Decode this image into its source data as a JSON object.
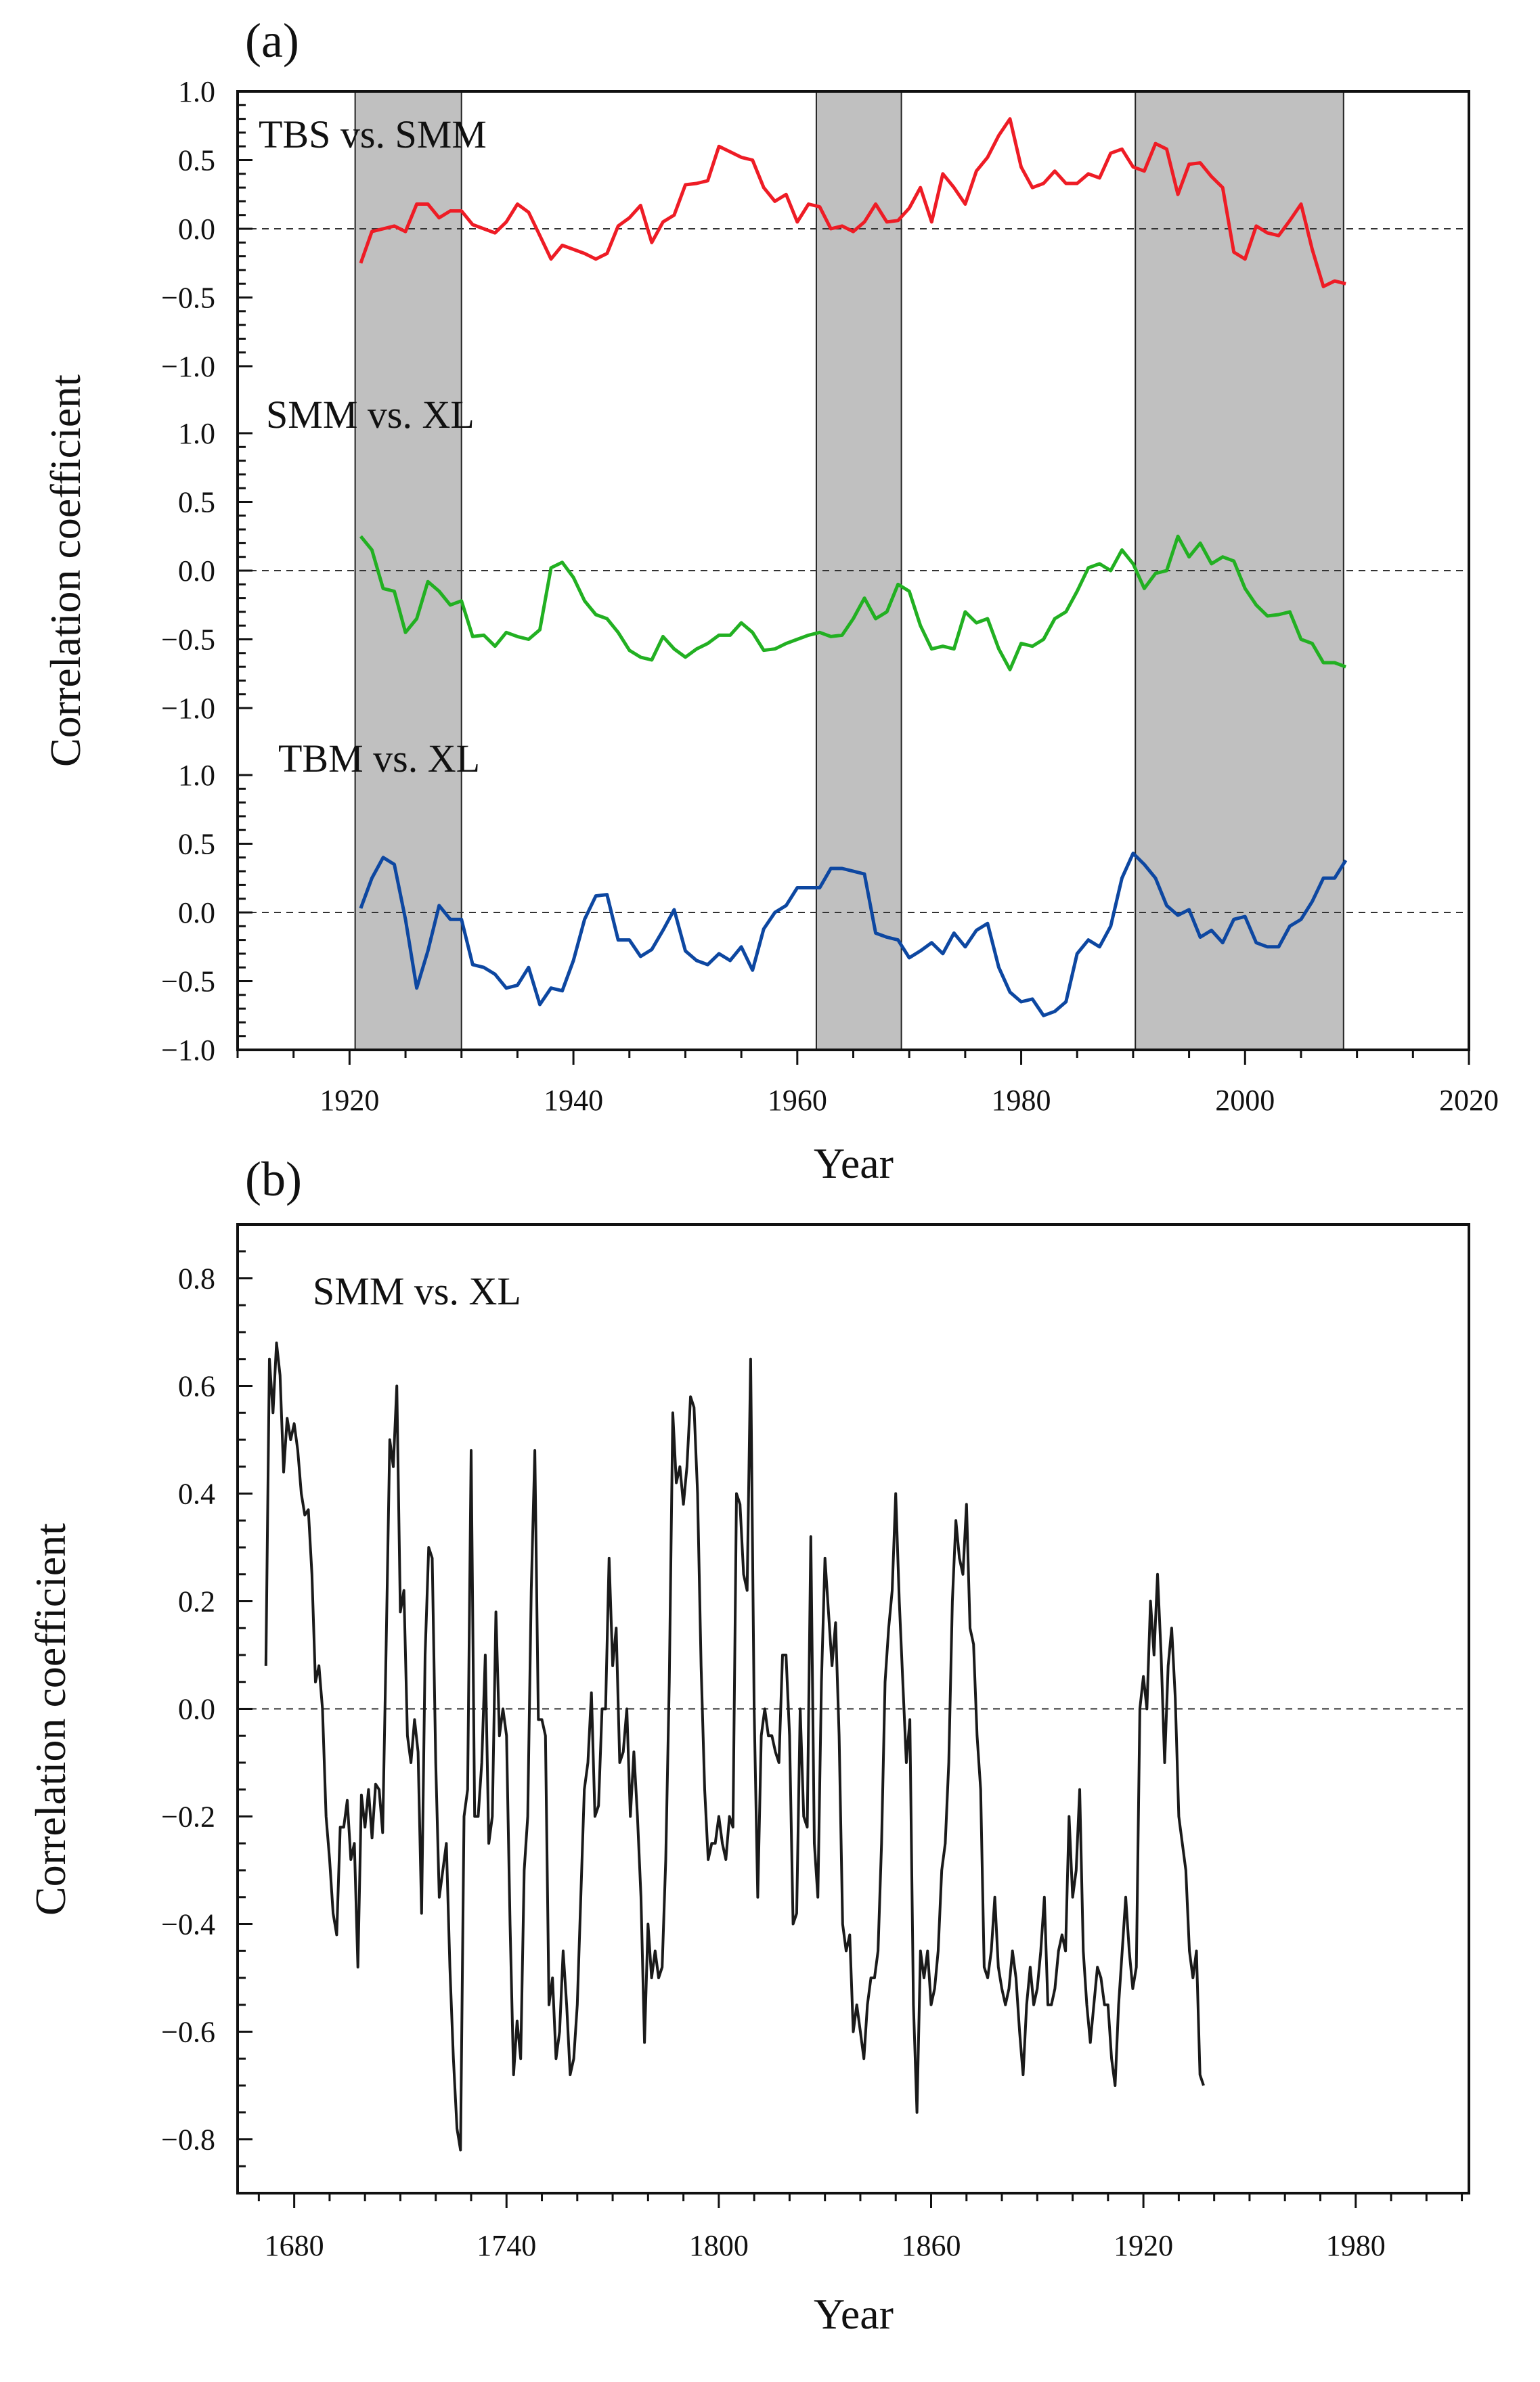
{
  "chart_data": [
    {
      "type": "line",
      "panel_label": "(a)",
      "title": "",
      "xlabel": "Year",
      "ylabel": "Correlation coefficient",
      "xlim": [
        1910,
        2020
      ],
      "xticks": [
        "1920",
        "1940",
        "1960",
        "1980",
        "2000",
        "2020"
      ],
      "shaded_periods": [
        [
          1920.5,
          1930
        ],
        [
          1961.7,
          1969.3
        ],
        [
          1990.2,
          2008.8
        ]
      ],
      "subplots": [
        {
          "name": "TBS vs. SMM",
          "color": "#ee1c25",
          "ylim": [
            -1.0,
            1.0
          ],
          "yticks": [
            "1.0",
            "0.5",
            "0.0",
            "−0.5",
            "−1.0"
          ],
          "x": [
            1921,
            1922,
            1923,
            1924,
            1925,
            1926,
            1927,
            1928,
            1929,
            1930,
            1931,
            1932,
            1933,
            1934,
            1935,
            1936,
            1937,
            1938,
            1939,
            1940,
            1941,
            1942,
            1943,
            1944,
            1945,
            1946,
            1947,
            1948,
            1949,
            1950,
            1951,
            1952,
            1953,
            1954,
            1955,
            1956,
            1957,
            1958,
            1959,
            1960,
            1961,
            1962,
            1963,
            1964,
            1965,
            1966,
            1967,
            1968,
            1969,
            1970,
            1971,
            1972,
            1973,
            1974,
            1975,
            1976,
            1977,
            1978,
            1979,
            1980,
            1981,
            1982,
            1983,
            1984,
            1985,
            1986,
            1987,
            1988,
            1989,
            1990,
            1991,
            1992,
            1993,
            1994,
            1995,
            1996,
            1997,
            1998,
            1999,
            2000,
            2001,
            2002,
            2003,
            2004,
            2005,
            2006,
            2007,
            2008,
            2009
          ],
          "values": [
            -0.25,
            -0.02,
            0.0,
            0.02,
            -0.02,
            0.18,
            0.18,
            0.08,
            0.13,
            0.13,
            0.03,
            0.0,
            -0.03,
            0.05,
            0.18,
            0.12,
            -0.05,
            -0.22,
            -0.12,
            -0.15,
            -0.18,
            -0.22,
            -0.18,
            0.02,
            0.08,
            0.17,
            -0.1,
            0.05,
            0.1,
            0.32,
            0.33,
            0.35,
            0.6,
            0.56,
            0.52,
            0.5,
            0.3,
            0.2,
            0.25,
            0.05,
            0.18,
            0.16,
            0.0,
            0.02,
            -0.02,
            0.05,
            0.18,
            0.05,
            0.06,
            0.15,
            0.3,
            0.05,
            0.4,
            0.3,
            0.18,
            0.42,
            0.52,
            0.68,
            0.8,
            0.45,
            0.3,
            0.33,
            0.42,
            0.33,
            0.33,
            0.4,
            0.37,
            0.55,
            0.58,
            0.45,
            0.42,
            0.62,
            0.58,
            0.25,
            0.47,
            0.48,
            0.38,
            0.3,
            -0.17,
            -0.22,
            0.02,
            -0.03,
            -0.05,
            0.06,
            0.18,
            -0.15,
            -0.42,
            -0.38,
            -0.4
          ]
        },
        {
          "name": "SMM vs. XL",
          "color": "#22b022",
          "ylim": [
            -1.0,
            1.0
          ],
          "yticks": [
            "1.0",
            "0.5",
            "0.0",
            "−0.5",
            "−1.0"
          ],
          "x": [
            1921,
            1922,
            1923,
            1924,
            1925,
            1926,
            1927,
            1928,
            1929,
            1930,
            1931,
            1932,
            1933,
            1934,
            1935,
            1936,
            1937,
            1938,
            1939,
            1940,
            1941,
            1942,
            1943,
            1944,
            1945,
            1946,
            1947,
            1948,
            1949,
            1950,
            1951,
            1952,
            1953,
            1954,
            1955,
            1956,
            1957,
            1958,
            1959,
            1960,
            1961,
            1962,
            1963,
            1964,
            1965,
            1966,
            1967,
            1968,
            1969,
            1970,
            1971,
            1972,
            1973,
            1974,
            1975,
            1976,
            1977,
            1978,
            1979,
            1980,
            1981,
            1982,
            1983,
            1984,
            1985,
            1986,
            1987,
            1988,
            1989,
            1990,
            1991,
            1992,
            1993,
            1994,
            1995,
            1996,
            1997,
            1998,
            1999,
            2000,
            2001,
            2002,
            2003,
            2004,
            2005,
            2006,
            2007,
            2008,
            2009
          ],
          "values": [
            0.25,
            0.15,
            -0.13,
            -0.15,
            -0.45,
            -0.35,
            -0.08,
            -0.15,
            -0.25,
            -0.22,
            -0.48,
            -0.47,
            -0.55,
            -0.45,
            -0.48,
            -0.5,
            -0.43,
            0.02,
            0.06,
            -0.05,
            -0.22,
            -0.32,
            -0.35,
            -0.45,
            -0.58,
            -0.63,
            -0.65,
            -0.48,
            -0.57,
            -0.63,
            -0.57,
            -0.53,
            -0.47,
            -0.47,
            -0.38,
            -0.45,
            -0.58,
            -0.57,
            -0.53,
            -0.5,
            -0.47,
            -0.45,
            -0.48,
            -0.47,
            -0.35,
            -0.2,
            -0.35,
            -0.3,
            -0.1,
            -0.15,
            -0.4,
            -0.57,
            -0.55,
            -0.57,
            -0.3,
            -0.38,
            -0.35,
            -0.57,
            -0.72,
            -0.53,
            -0.55,
            -0.5,
            -0.35,
            -0.3,
            -0.15,
            0.02,
            0.05,
            0.0,
            0.15,
            0.05,
            -0.13,
            -0.02,
            0.0,
            0.25,
            0.1,
            0.2,
            0.05,
            0.1,
            0.07,
            -0.13,
            -0.25,
            -0.33,
            -0.32,
            -0.3,
            -0.5,
            -0.53,
            -0.67,
            -0.67,
            -0.7
          ]
        },
        {
          "name": "TBM vs. XL",
          "color": "#0d47a1",
          "ylim": [
            -1.0,
            1.0
          ],
          "yticks": [
            "1.0",
            "0.5",
            "0.0",
            "−0.5",
            "−1.0"
          ],
          "x": [
            1921,
            1922,
            1923,
            1924,
            1925,
            1926,
            1927,
            1928,
            1929,
            1930,
            1931,
            1932,
            1933,
            1934,
            1935,
            1936,
            1937,
            1938,
            1939,
            1940,
            1941,
            1942,
            1943,
            1944,
            1945,
            1946,
            1947,
            1948,
            1949,
            1950,
            1951,
            1952,
            1953,
            1954,
            1955,
            1956,
            1957,
            1958,
            1959,
            1960,
            1961,
            1962,
            1963,
            1964,
            1965,
            1966,
            1967,
            1968,
            1969,
            1970,
            1971,
            1972,
            1973,
            1974,
            1975,
            1976,
            1977,
            1978,
            1979,
            1980,
            1981,
            1982,
            1983,
            1984,
            1985,
            1986,
            1987,
            1988,
            1989,
            1990,
            1991,
            1992,
            1993,
            1994,
            1995,
            1996,
            1997,
            1998,
            1999,
            2000,
            2001,
            2002,
            2003,
            2004,
            2005,
            2006,
            2007,
            2008,
            2009
          ],
          "values": [
            0.03,
            0.25,
            0.4,
            0.35,
            -0.05,
            -0.55,
            -0.28,
            0.05,
            -0.05,
            -0.05,
            -0.38,
            -0.4,
            -0.45,
            -0.55,
            -0.53,
            -0.4,
            -0.67,
            -0.55,
            -0.57,
            -0.35,
            -0.05,
            0.12,
            0.13,
            -0.2,
            -0.2,
            -0.32,
            -0.27,
            -0.13,
            0.02,
            -0.28,
            -0.35,
            -0.38,
            -0.3,
            -0.35,
            -0.25,
            -0.42,
            -0.12,
            0.0,
            0.05,
            0.18,
            0.18,
            0.18,
            0.32,
            0.32,
            0.3,
            0.28,
            -0.15,
            -0.18,
            -0.2,
            -0.33,
            -0.28,
            -0.22,
            -0.3,
            -0.15,
            -0.25,
            -0.13,
            -0.08,
            -0.4,
            -0.58,
            -0.65,
            -0.63,
            -0.75,
            -0.72,
            -0.65,
            -0.3,
            -0.2,
            -0.25,
            -0.1,
            0.25,
            0.43,
            0.35,
            0.25,
            0.05,
            -0.02,
            0.02,
            -0.18,
            -0.13,
            -0.22,
            -0.05,
            -0.03,
            -0.22,
            -0.25,
            -0.25,
            -0.1,
            -0.05,
            0.08,
            0.25,
            0.25,
            0.38
          ]
        }
      ]
    },
    {
      "type": "line",
      "panel_label": "(b)",
      "title": "",
      "xlabel": "Year",
      "ylabel": "Correlation coefficient",
      "xlim": [
        1664,
        2012
      ],
      "ylim": [
        -0.9,
        0.9
      ],
      "xticks": [
        "1680",
        "1740",
        "1800",
        "1860",
        "1920",
        "1980"
      ],
      "yticks": [
        "0.8",
        "0.6",
        "0.4",
        "0.2",
        "0.0",
        "−0.2",
        "−0.4",
        "−0.6",
        "−0.8"
      ],
      "series": [
        {
          "name": "SMM vs. XL",
          "color": "#1a1a1a",
          "x_start": 1672,
          "values": [
            0.08,
            0.65,
            0.55,
            0.68,
            0.62,
            0.44,
            0.54,
            0.5,
            0.53,
            0.48,
            0.4,
            0.36,
            0.37,
            0.25,
            0.05,
            0.08,
            0.0,
            -0.2,
            -0.28,
            -0.38,
            -0.42,
            -0.22,
            -0.22,
            -0.17,
            -0.28,
            -0.25,
            -0.48,
            -0.16,
            -0.22,
            -0.15,
            -0.24,
            -0.14,
            -0.15,
            -0.23,
            0.12,
            0.5,
            0.45,
            0.6,
            0.18,
            0.22,
            -0.05,
            -0.1,
            -0.02,
            -0.08,
            -0.38,
            0.1,
            0.3,
            0.28,
            -0.1,
            -0.35,
            -0.3,
            -0.25,
            -0.48,
            -0.65,
            -0.78,
            -0.82,
            -0.2,
            -0.15,
            0.48,
            -0.2,
            -0.2,
            -0.1,
            0.1,
            -0.25,
            -0.2,
            0.18,
            -0.05,
            0.0,
            -0.05,
            -0.4,
            -0.68,
            -0.58,
            -0.65,
            -0.3,
            -0.2,
            0.22,
            0.48,
            -0.02,
            -0.02,
            -0.05,
            -0.55,
            -0.5,
            -0.65,
            -0.6,
            -0.45,
            -0.55,
            -0.68,
            -0.65,
            -0.55,
            -0.35,
            -0.15,
            -0.1,
            0.03,
            -0.2,
            -0.18,
            0.0,
            0.0,
            0.28,
            0.08,
            0.15,
            -0.1,
            -0.08,
            0.0,
            -0.2,
            -0.08,
            -0.2,
            -0.35,
            -0.62,
            -0.4,
            -0.5,
            -0.45,
            -0.5,
            -0.48,
            -0.28,
            0.05,
            0.55,
            0.42,
            0.45,
            0.38,
            0.45,
            0.58,
            0.56,
            0.4,
            0.08,
            -0.15,
            -0.28,
            -0.25,
            -0.25,
            -0.2,
            -0.25,
            -0.28,
            -0.2,
            -0.22,
            0.4,
            0.38,
            0.25,
            0.22,
            0.65,
            0.0,
            -0.35,
            -0.05,
            0.0,
            -0.05,
            -0.05,
            -0.08,
            -0.1,
            0.1,
            0.1,
            -0.05,
            -0.4,
            -0.38,
            0.0,
            -0.2,
            -0.22,
            0.32,
            -0.25,
            -0.35,
            0.05,
            0.28,
            0.18,
            0.08,
            0.16,
            -0.05,
            -0.4,
            -0.45,
            -0.42,
            -0.6,
            -0.55,
            -0.6,
            -0.65,
            -0.55,
            -0.5,
            -0.5,
            -0.45,
            -0.25,
            0.05,
            0.15,
            0.22,
            0.4,
            0.2,
            0.05,
            -0.1,
            -0.02,
            -0.55,
            -0.75,
            -0.45,
            -0.5,
            -0.45,
            -0.55,
            -0.52,
            -0.45,
            -0.3,
            -0.25,
            -0.1,
            0.2,
            0.35,
            0.28,
            0.25,
            0.38,
            0.15,
            0.12,
            -0.05,
            -0.15,
            -0.48,
            -0.5,
            -0.45,
            -0.35,
            -0.48,
            -0.52,
            -0.55,
            -0.52,
            -0.45,
            -0.5,
            -0.6,
            -0.68,
            -0.55,
            -0.48,
            -0.55,
            -0.52,
            -0.45,
            -0.35,
            -0.55,
            -0.55,
            -0.52,
            -0.45,
            -0.42,
            -0.45,
            -0.2,
            -0.35,
            -0.3,
            -0.15,
            -0.45,
            -0.55,
            -0.62,
            -0.55,
            -0.48,
            -0.5,
            -0.55,
            -0.55,
            -0.65,
            -0.7,
            -0.55,
            -0.45,
            -0.35,
            -0.45,
            -0.52,
            -0.48,
            0.0,
            0.06,
            0.0,
            0.2,
            0.1,
            0.25,
            0.1,
            -0.1,
            0.08,
            0.15,
            0.02,
            -0.2,
            -0.25,
            -0.3,
            -0.45,
            -0.5,
            -0.45,
            -0.68,
            -0.7
          ]
        }
      ]
    }
  ]
}
